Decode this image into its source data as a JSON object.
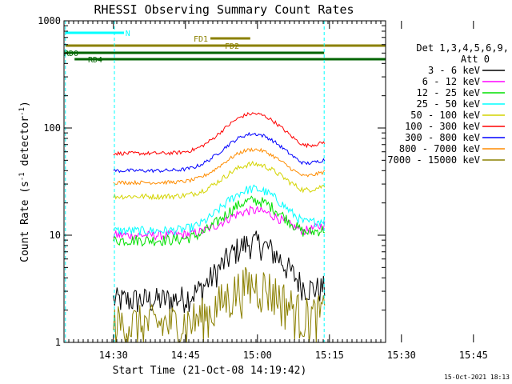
{
  "chart_data": {
    "type": "line",
    "title": "RHESSI Observing Summary Count Rates",
    "xlabel": "Start Time (21-Oct-08 14:19:42)",
    "ylabel_main": "Count Rate (s",
    "ylabel_sup1": "-1",
    "ylabel_mid": " detector",
    "ylabel_sup2": "-1",
    "ylabel_end": ")",
    "y_scale": "log",
    "ylim": [
      1,
      1000
    ],
    "xlim_minutes": [
      0,
      67
    ],
    "x_ticks": [
      {
        "label": "14:30",
        "minutes": 10.3
      },
      {
        "label": "14:45",
        "minutes": 25.3
      },
      {
        "label": "15:00",
        "minutes": 40.3
      },
      {
        "label": "15:15",
        "minutes": 55.3
      },
      {
        "label": "15:30",
        "minutes": 70.3
      },
      {
        "label": "15:45",
        "minutes": 85.3
      }
    ],
    "y_ticks": [
      {
        "label": "1",
        "value": 1
      },
      {
        "label": "10",
        "value": 10
      },
      {
        "label": "100",
        "value": 100
      },
      {
        "label": "1000",
        "value": 1000
      }
    ],
    "legend_header": [
      "Det 1,3,4,5,6,9,",
      "Att 0"
    ],
    "series": [
      {
        "name": "3 - 6 keV",
        "color": "#000000"
      },
      {
        "name": "6 - 12 keV",
        "color": "#ff00ff"
      },
      {
        "name": "12 - 25 keV",
        "color": "#00e000"
      },
      {
        "name": "25 - 50 keV",
        "color": "#00ffff"
      },
      {
        "name": "50 - 100 keV",
        "color": "#d4d400"
      },
      {
        "name": "100 - 300 keV",
        "color": "#ff0000"
      },
      {
        "name": "300 - 800 keV",
        "color": "#0000ff"
      },
      {
        "name": "800 - 7000 keV",
        "color": "#ff8c00"
      },
      {
        "name": "7000 - 15000 keV",
        "color": "#8b8000"
      }
    ],
    "flags": [
      {
        "label": "N",
        "color": "#00ffff"
      },
      {
        "label": "FD1",
        "color": "#8b8000"
      },
      {
        "label": "FD2",
        "color": "#8b8000"
      },
      {
        "label": "RD0",
        "color": "#006400"
      },
      {
        "label": "RD4",
        "color": "#006400"
      }
    ],
    "timestamp": "15-Oct-2021 18:13"
  }
}
